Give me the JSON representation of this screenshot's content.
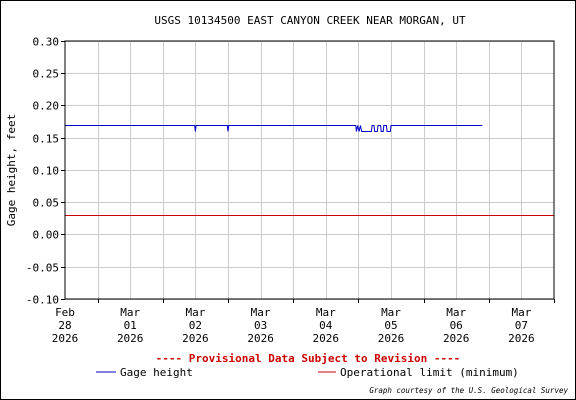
{
  "chart_data": {
    "type": "line",
    "title": "USGS 10134500 EAST CANYON CREEK NEAR MORGAN, UT",
    "ylabel": "Gage height, feet",
    "xlabel": "",
    "ylim": [
      -0.1,
      0.3
    ],
    "y_ticks": [
      "0.30",
      "0.25",
      "0.20",
      "0.15",
      "0.10",
      "0.05",
      "0.00",
      "-0.05",
      "-0.10"
    ],
    "y_tick_values": [
      0.3,
      0.25,
      0.2,
      0.15,
      0.1,
      0.05,
      0.0,
      -0.05,
      -0.1
    ],
    "x_range_days": [
      0,
      7.5
    ],
    "x_ticks": [
      {
        "day": 0,
        "lines": [
          "Feb",
          "28",
          "2026"
        ]
      },
      {
        "day": 1,
        "lines": [
          "Mar",
          "01",
          "2026"
        ]
      },
      {
        "day": 2,
        "lines": [
          "Mar",
          "02",
          "2026"
        ]
      },
      {
        "day": 3,
        "lines": [
          "Mar",
          "03",
          "2026"
        ]
      },
      {
        "day": 4,
        "lines": [
          "Mar",
          "04",
          "2026"
        ]
      },
      {
        "day": 5,
        "lines": [
          "Mar",
          "05",
          "2026"
        ]
      },
      {
        "day": 6,
        "lines": [
          "Mar",
          "06",
          "2026"
        ]
      },
      {
        "day": 7,
        "lines": [
          "Mar",
          "07",
          "2026"
        ]
      }
    ],
    "grid": true,
    "series": [
      {
        "name": "Gage height",
        "color": "#0000cc",
        "points": [
          [
            -0.5,
            0.17
          ],
          [
            1.99,
            0.17
          ],
          [
            2.0,
            0.16
          ],
          [
            2.01,
            0.17
          ],
          [
            2.49,
            0.17
          ],
          [
            2.5,
            0.16
          ],
          [
            2.51,
            0.17
          ],
          [
            4.46,
            0.17
          ],
          [
            4.47,
            0.16
          ],
          [
            4.49,
            0.17
          ],
          [
            4.51,
            0.16
          ],
          [
            4.53,
            0.17
          ],
          [
            4.55,
            0.16
          ],
          [
            4.7,
            0.16
          ],
          [
            4.71,
            0.17
          ],
          [
            4.74,
            0.17
          ],
          [
            4.75,
            0.16
          ],
          [
            4.79,
            0.16
          ],
          [
            4.8,
            0.17
          ],
          [
            4.84,
            0.17
          ],
          [
            4.85,
            0.16
          ],
          [
            4.88,
            0.16
          ],
          [
            4.89,
            0.17
          ],
          [
            4.93,
            0.17
          ],
          [
            4.94,
            0.16
          ],
          [
            4.99,
            0.16
          ],
          [
            5.0,
            0.17
          ],
          [
            6.4,
            0.17
          ]
        ]
      },
      {
        "name": "Operational limit (minimum)",
        "color": "#cc0000",
        "points": [
          [
            -0.5,
            0.03
          ],
          [
            7.5,
            0.03
          ]
        ]
      }
    ],
    "annotation": "---- Provisional Data Subject to Revision ----",
    "credit": "Graph courtesy of the U.S. Geological Survey"
  }
}
